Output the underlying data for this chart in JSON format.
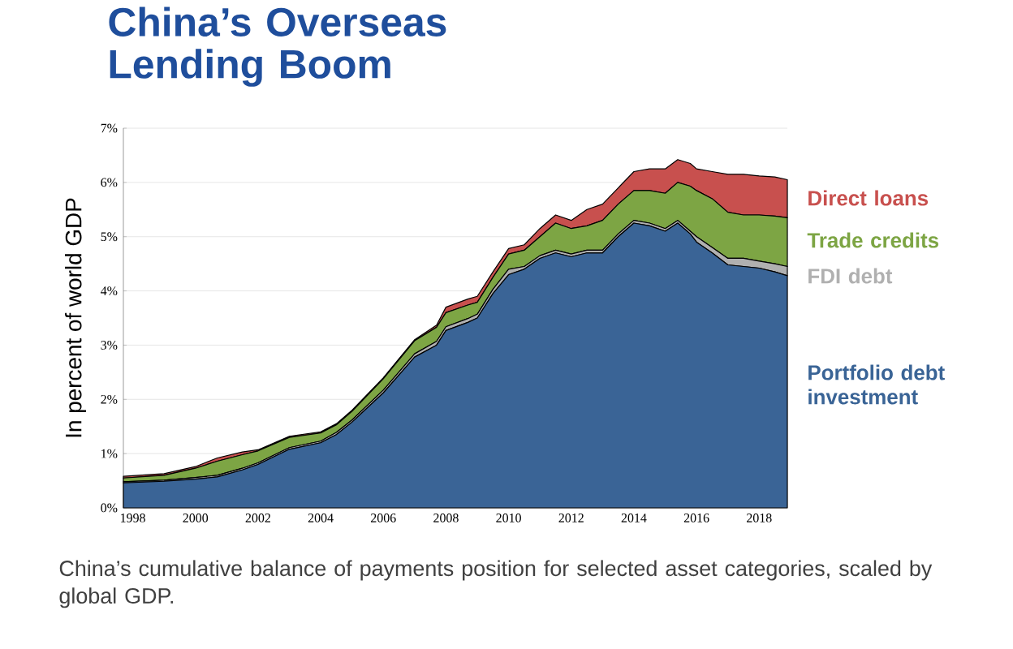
{
  "chart_data": {
    "type": "area",
    "stacked": true,
    "title": "China’s Overseas Lending Boom",
    "ylabel": "In percent of world GDP",
    "annotations": [
      "China’s cumulative balance of payments position for selected asset categories, scaled by global GDP."
    ],
    "x": [
      1997.7,
      1999,
      2000,
      2000.7,
      2001.5,
      2002,
      2003,
      2004,
      2004.5,
      2005,
      2006,
      2007,
      2007.7,
      2008,
      2008.7,
      2009,
      2009.5,
      2010,
      2010.5,
      2011,
      2011.5,
      2012,
      2012.5,
      2013,
      2013.5,
      2014,
      2014.5,
      2015,
      2015.4,
      2015.8,
      2016,
      2016.5,
      2017,
      2017.5,
      2018,
      2018.5,
      2018.9
    ],
    "series": [
      {
        "name": "Portfolio debt investment",
        "color": "#3a6496",
        "values": [
          0.46,
          0.49,
          0.53,
          0.57,
          0.7,
          0.8,
          1.08,
          1.2,
          1.35,
          1.58,
          2.12,
          2.78,
          3.0,
          3.27,
          3.42,
          3.5,
          3.95,
          4.3,
          4.4,
          4.6,
          4.7,
          4.63,
          4.7,
          4.7,
          5.0,
          5.25,
          5.2,
          5.1,
          5.25,
          5.05,
          4.9,
          4.7,
          4.48,
          4.45,
          4.42,
          4.35,
          4.28
        ]
      },
      {
        "name": "FDI debt",
        "color": "#b0b0b0",
        "values": [
          0.02,
          0.02,
          0.03,
          0.03,
          0.03,
          0.03,
          0.03,
          0.03,
          0.04,
          0.04,
          0.05,
          0.06,
          0.07,
          0.07,
          0.07,
          0.07,
          0.08,
          0.1,
          0.05,
          0.05,
          0.05,
          0.05,
          0.05,
          0.05,
          0.05,
          0.05,
          0.05,
          0.05,
          0.05,
          0.05,
          0.1,
          0.1,
          0.12,
          0.15,
          0.13,
          0.15,
          0.17
        ]
      },
      {
        "name": "Trade credits",
        "color": "#7da544",
        "values": [
          0.07,
          0.09,
          0.17,
          0.26,
          0.25,
          0.22,
          0.19,
          0.15,
          0.14,
          0.16,
          0.21,
          0.24,
          0.26,
          0.26,
          0.25,
          0.22,
          0.22,
          0.28,
          0.3,
          0.35,
          0.5,
          0.47,
          0.45,
          0.55,
          0.55,
          0.55,
          0.6,
          0.65,
          0.7,
          0.83,
          0.85,
          0.9,
          0.85,
          0.8,
          0.85,
          0.88,
          0.9
        ]
      },
      {
        "name": "Direct loans",
        "color": "#c8504e",
        "values": [
          0.03,
          0.03,
          0.03,
          0.06,
          0.05,
          0.02,
          0.02,
          0.02,
          0.02,
          0.02,
          0.02,
          0.02,
          0.04,
          0.1,
          0.11,
          0.11,
          0.1,
          0.1,
          0.1,
          0.15,
          0.15,
          0.15,
          0.3,
          0.3,
          0.3,
          0.35,
          0.4,
          0.45,
          0.42,
          0.42,
          0.4,
          0.5,
          0.7,
          0.75,
          0.72,
          0.72,
          0.7
        ]
      }
    ],
    "xlim": [
      1997.7,
      2018.9
    ],
    "xticks": [
      1998,
      2000,
      2002,
      2004,
      2006,
      2008,
      2010,
      2012,
      2014,
      2016,
      2018
    ],
    "ylim": [
      0,
      7
    ],
    "yticks": [
      {
        "value": 0,
        "label": "0%"
      },
      {
        "value": 1,
        "label": "1%"
      },
      {
        "value": 2,
        "label": "2%"
      },
      {
        "value": 3,
        "label": "3%"
      },
      {
        "value": 4,
        "label": "4%"
      },
      {
        "value": 5,
        "label": "5%"
      },
      {
        "value": 6,
        "label": "6%"
      },
      {
        "value": 7,
        "label": "7%"
      }
    ],
    "grid": "y",
    "legend": "right"
  }
}
